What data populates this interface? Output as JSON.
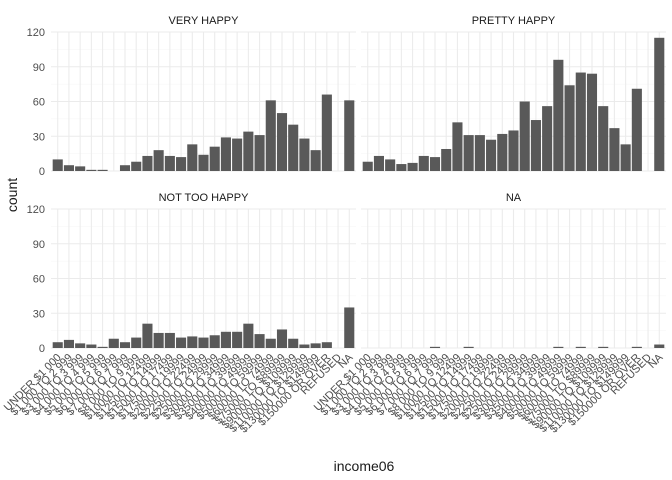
{
  "chart_data": {
    "type": "bar",
    "facet_var": "happy",
    "xlabel": "income06",
    "ylabel": "count",
    "ylim": [
      0,
      120
    ],
    "yticks": [
      0,
      30,
      60,
      90,
      120
    ],
    "grid": true,
    "bar_color": "#595959",
    "categories": [
      "UNDER $1 000",
      "$1 000 TO 2 999",
      "$3 000 TO 3 999",
      "$4 000 TO 4 999",
      "$5 000 TO 5 999",
      "$6 000 TO 6 999",
      "$7 000 TO 7 999",
      "$8 000 TO 9 999",
      "$10000 TO 12499",
      "$12500 TO 14999",
      "$15000 TO 17499",
      "$17500 TO 19999",
      "$20000 TO 22499",
      "$22500 TO 24999",
      "$25000 TO 29999",
      "$30000 TO 34999",
      "$35000 TO 39999",
      "$40000 TO 49999",
      "$50000 TO 59999",
      "$60000 TO 74999",
      "$75000 TO $89999",
      "$90000 TO $109999",
      "$110000 TO $129999",
      "$130000 TO $149999",
      "$150000 OR OVER",
      "REFUSED",
      "NA"
    ],
    "series": [
      {
        "name": "VERY HAPPY",
        "values": [
          10,
          5,
          4,
          1,
          1,
          0,
          5,
          8,
          13,
          18,
          13,
          12,
          23,
          14,
          21,
          29,
          28,
          34,
          31,
          61,
          50,
          40,
          28,
          18,
          66,
          0,
          61
        ]
      },
      {
        "name": "PRETTY HAPPY",
        "values": [
          8,
          13,
          10,
          6,
          7,
          13,
          12,
          19,
          42,
          31,
          31,
          27,
          32,
          35,
          60,
          44,
          56,
          96,
          74,
          85,
          84,
          56,
          37,
          23,
          71,
          0,
          115
        ]
      },
      {
        "name": "NOT TOO HAPPY",
        "values": [
          5,
          7,
          4,
          3,
          1,
          8,
          5,
          9,
          21,
          13,
          13,
          9,
          10,
          9,
          11,
          14,
          14,
          21,
          12,
          8,
          16,
          8,
          3,
          4,
          5,
          0,
          35
        ]
      },
      {
        "name": "NA",
        "values": [
          0,
          0,
          0,
          0,
          0,
          0,
          1,
          0,
          0,
          1,
          0,
          0,
          0,
          0,
          0,
          0,
          0,
          1,
          0,
          1,
          0,
          1,
          0,
          0,
          1,
          0,
          3
        ]
      }
    ]
  }
}
